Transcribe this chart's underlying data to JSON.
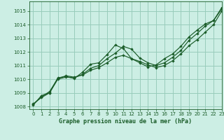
{
  "title": "Graphe pression niveau de la mer (hPa)",
  "background_color": "#cceee4",
  "grid_color": "#99ccbb",
  "line_color": "#1a5c28",
  "xlim": [
    -0.5,
    23
  ],
  "ylim": [
    1007.8,
    1015.7
  ],
  "yticks": [
    1008,
    1009,
    1010,
    1011,
    1012,
    1013,
    1014,
    1015
  ],
  "xticks": [
    0,
    1,
    2,
    3,
    4,
    5,
    6,
    7,
    8,
    9,
    10,
    11,
    12,
    13,
    14,
    15,
    16,
    17,
    18,
    19,
    20,
    21,
    22,
    23
  ],
  "series": [
    {
      "x": [
        0,
        1,
        2,
        3,
        4,
        5,
        6,
        7,
        8,
        9,
        10,
        11,
        12,
        13,
        14,
        15,
        16,
        17,
        18,
        19,
        20,
        21,
        22,
        23
      ],
      "y": [
        1008.1,
        1008.8,
        1009.0,
        1010.1,
        1010.2,
        1010.05,
        1010.5,
        1011.1,
        1011.2,
        1011.8,
        1012.5,
        1012.25,
        1011.5,
        1011.2,
        1010.9,
        1011.05,
        1011.5,
        1011.85,
        1012.4,
        1013.1,
        1013.6,
        1014.05,
        1014.3,
        1015.15
      ]
    },
    {
      "x": [
        0,
        1,
        2,
        3,
        4,
        5,
        6,
        7,
        8,
        9,
        10,
        11,
        12,
        13,
        14,
        15,
        16,
        17,
        18,
        19,
        20,
        21,
        22,
        23
      ],
      "y": [
        1008.15,
        1008.7,
        1009.1,
        1010.05,
        1010.25,
        1010.15,
        1010.3,
        1010.65,
        1010.85,
        1011.2,
        1011.6,
        1011.75,
        1011.5,
        1011.3,
        1011.05,
        1010.85,
        1011.0,
        1011.35,
        1011.85,
        1012.45,
        1012.9,
        1013.45,
        1014.0,
        1015.0
      ]
    },
    {
      "x": [
        0,
        1,
        2,
        3,
        4,
        5,
        6,
        7,
        8,
        9,
        10,
        11,
        12,
        13,
        14,
        15,
        16,
        17,
        18,
        19,
        20,
        21,
        22,
        23
      ],
      "y": [
        1008.2,
        1008.65,
        1009.0,
        1010.0,
        1010.15,
        1010.1,
        1010.35,
        1010.8,
        1011.0,
        1011.5,
        1011.9,
        1012.4,
        1012.2,
        1011.55,
        1011.2,
        1011.0,
        1011.2,
        1011.6,
        1012.1,
        1012.85,
        1013.35,
        1013.9,
        1014.3,
        1015.25
      ]
    }
  ]
}
